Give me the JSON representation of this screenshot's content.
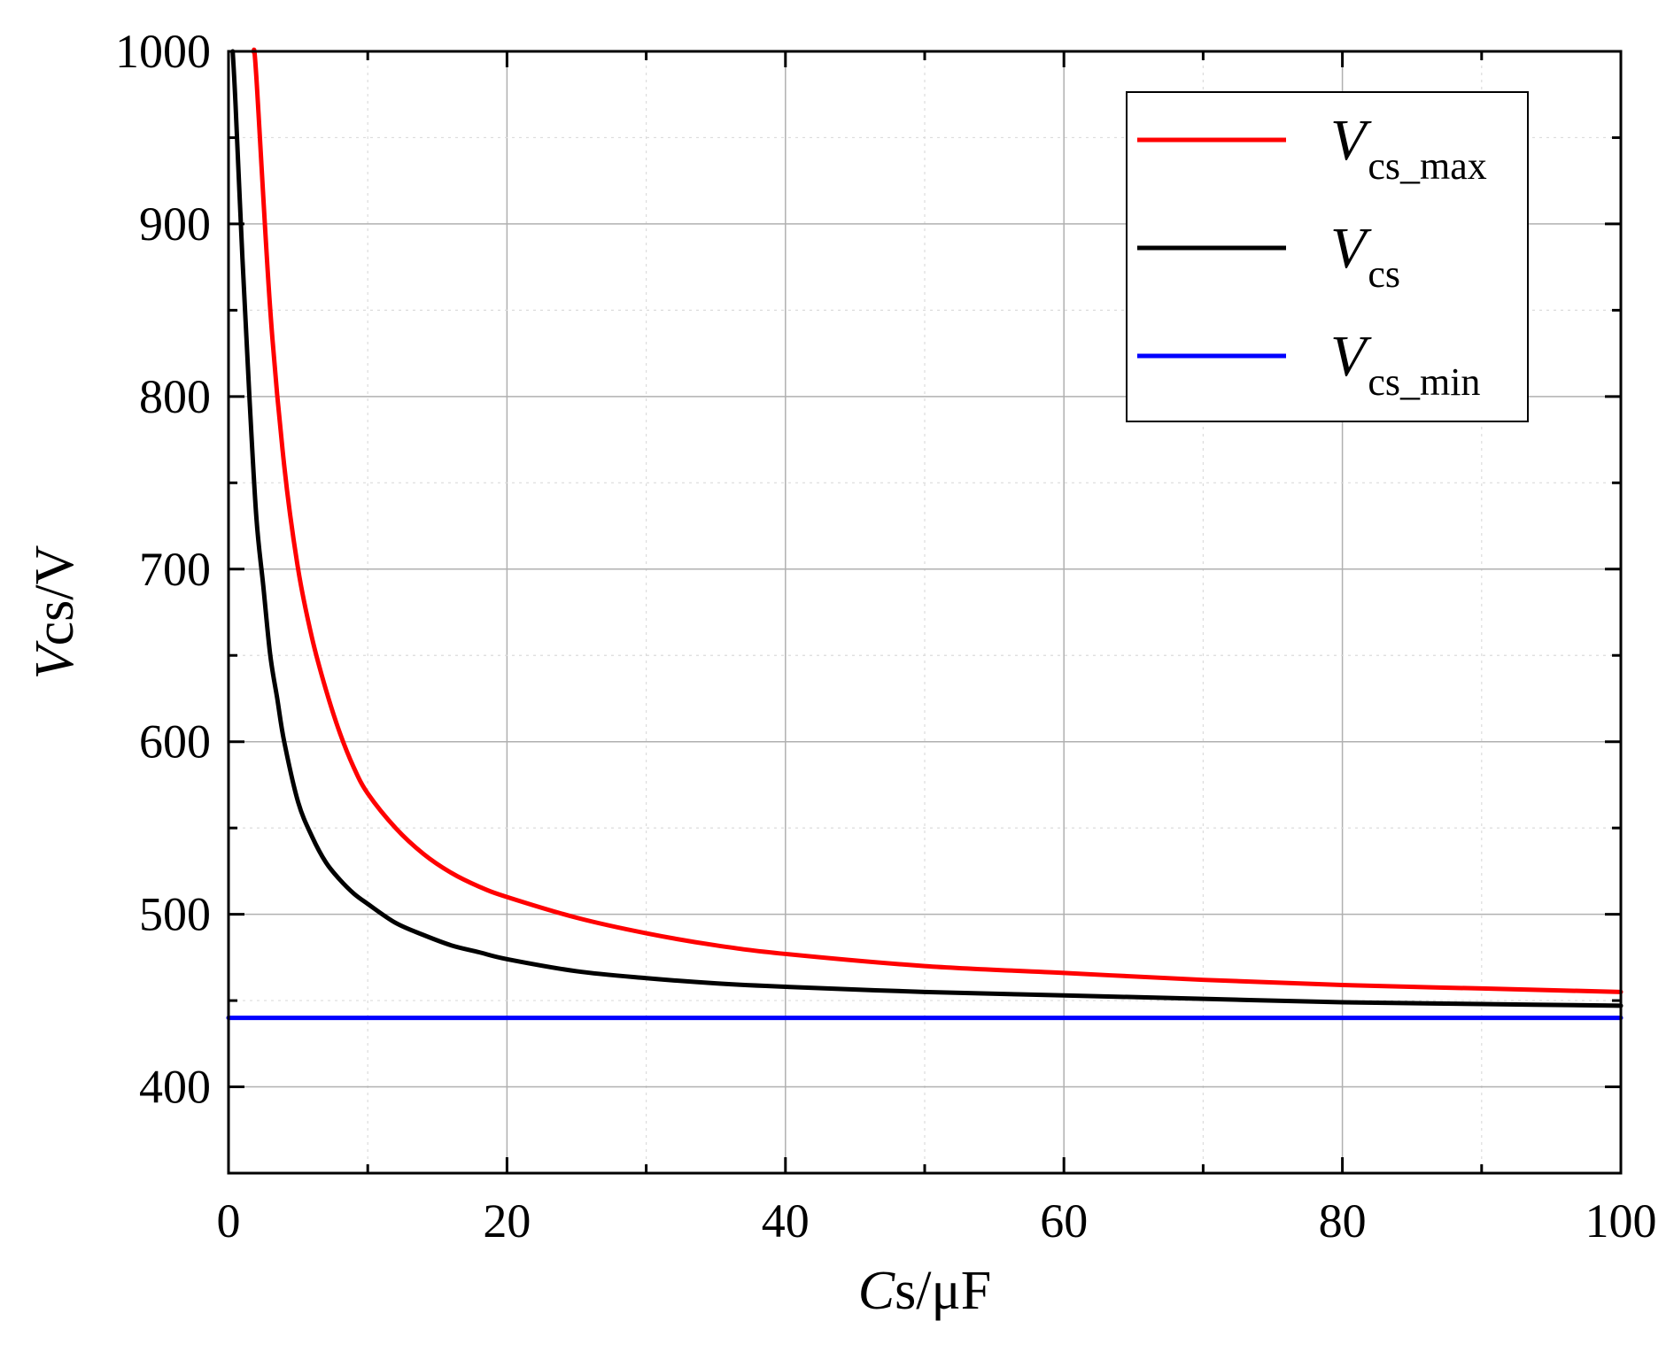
{
  "chart_data": {
    "type": "line",
    "title": "",
    "xlabel": {
      "italic": "C",
      "rest": "s/μF"
    },
    "ylabel": {
      "italic": "V",
      "rest": "cs/V"
    },
    "xlim": [
      0,
      100
    ],
    "ylim": [
      350,
      1000
    ],
    "xticks": [
      0,
      20,
      40,
      60,
      80,
      100
    ],
    "yticks": [
      400,
      500,
      600,
      700,
      800,
      900,
      1000
    ],
    "grid": true,
    "legend_position": "top-right",
    "series": [
      {
        "name": "Vcs_max",
        "label_main": "V",
        "label_sub": "cs_max",
        "color": "#ff0000",
        "points": [
          [
            1.8,
            1000
          ],
          [
            2,
            985
          ],
          [
            3,
            850
          ],
          [
            4,
            760
          ],
          [
            5,
            700
          ],
          [
            6,
            660
          ],
          [
            7,
            630
          ],
          [
            8,
            605
          ],
          [
            9,
            585
          ],
          [
            10,
            570
          ],
          [
            12,
            550
          ],
          [
            14,
            535
          ],
          [
            16,
            524
          ],
          [
            18,
            516
          ],
          [
            20,
            510
          ],
          [
            25,
            498
          ],
          [
            30,
            489
          ],
          [
            35,
            482
          ],
          [
            40,
            477
          ],
          [
            50,
            470
          ],
          [
            60,
            466
          ],
          [
            70,
            462
          ],
          [
            80,
            459
          ],
          [
            90,
            457
          ],
          [
            100,
            455
          ]
        ]
      },
      {
        "name": "Vcs",
        "label_main": "V",
        "label_sub": "cs",
        "color": "#000000",
        "points": [
          [
            0.3,
            1000
          ],
          [
            0.5,
            970
          ],
          [
            1,
            880
          ],
          [
            1.5,
            800
          ],
          [
            2,
            730
          ],
          [
            2.5,
            690
          ],
          [
            3,
            650
          ],
          [
            3.5,
            625
          ],
          [
            4,
            600
          ],
          [
            5,
            565
          ],
          [
            6,
            545
          ],
          [
            7,
            530
          ],
          [
            8,
            520
          ],
          [
            9,
            512
          ],
          [
            10,
            506
          ],
          [
            12,
            495
          ],
          [
            14,
            488
          ],
          [
            16,
            482
          ],
          [
            18,
            478
          ],
          [
            20,
            474
          ],
          [
            25,
            467
          ],
          [
            30,
            463
          ],
          [
            35,
            460
          ],
          [
            40,
            458
          ],
          [
            50,
            455
          ],
          [
            60,
            453
          ],
          [
            70,
            451
          ],
          [
            80,
            449
          ],
          [
            90,
            448
          ],
          [
            100,
            447
          ]
        ]
      },
      {
        "name": "Vcs_min",
        "label_main": "V",
        "label_sub": "cs_min",
        "color": "#0000ff",
        "points": [
          [
            0,
            440
          ],
          [
            100,
            440
          ]
        ]
      }
    ]
  }
}
